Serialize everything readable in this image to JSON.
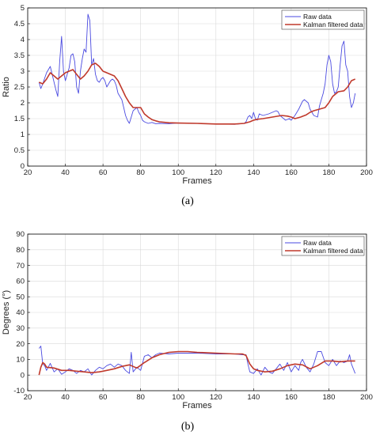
{
  "chart_data": [
    {
      "type": "line",
      "caption": "(a)",
      "xlabel": "Frames",
      "ylabel": "Ratio",
      "xlim": [
        20,
        200
      ],
      "ylim": [
        0,
        5
      ],
      "xticks": [
        20,
        40,
        60,
        80,
        100,
        120,
        140,
        160,
        180,
        200
      ],
      "yticks": [
        0,
        0.5,
        1,
        1.5,
        2,
        2.5,
        3,
        3.5,
        4,
        4.5,
        5
      ],
      "ytick_labels": [
        "0",
        "0.5",
        "1",
        "1.5",
        "2",
        "2.5",
        "3",
        "3.5",
        "4",
        "4.5",
        "5"
      ],
      "grid": true,
      "legend_position": "top-right",
      "series": [
        {
          "name": "Raw data",
          "color": "#4a4ae0",
          "x": [
            26,
            27,
            28,
            30,
            32,
            33,
            35,
            36,
            37,
            38,
            39,
            40,
            41,
            42,
            43,
            44,
            45,
            46,
            47,
            48,
            49,
            50,
            51,
            52,
            53,
            54,
            55,
            56,
            57,
            58,
            59,
            60,
            61,
            62,
            63,
            64,
            65,
            66,
            67,
            68,
            69,
            70,
            71,
            72,
            73,
            74,
            75,
            76,
            77,
            78,
            79,
            80,
            81,
            82,
            84,
            86,
            88,
            90,
            95,
            100,
            110,
            120,
            130,
            135,
            136,
            137,
            138,
            139,
            140,
            141,
            142,
            143,
            145,
            148,
            150,
            152,
            153,
            154,
            155,
            157,
            159,
            160,
            162,
            164,
            166,
            167,
            168,
            169,
            170,
            172,
            174,
            175,
            176,
            177,
            178,
            179,
            180,
            181,
            182,
            183,
            184,
            185,
            186,
            187,
            188,
            189,
            190,
            191,
            192,
            193,
            194
          ],
          "y": [
            2.65,
            2.45,
            2.6,
            2.95,
            3.15,
            2.9,
            2.4,
            2.2,
            3.3,
            4.1,
            3.0,
            2.7,
            2.9,
            3.1,
            3.5,
            3.55,
            3.3,
            2.5,
            2.3,
            3.0,
            3.4,
            3.7,
            3.6,
            4.8,
            4.6,
            3.2,
            3.4,
            2.9,
            2.7,
            2.65,
            2.75,
            2.8,
            2.7,
            2.5,
            2.6,
            2.7,
            2.75,
            2.7,
            2.55,
            2.3,
            2.2,
            2.1,
            1.85,
            1.6,
            1.45,
            1.35,
            1.55,
            1.75,
            1.8,
            1.85,
            1.7,
            1.6,
            1.45,
            1.4,
            1.35,
            1.38,
            1.34,
            1.35,
            1.34,
            1.36,
            1.35,
            1.33,
            1.32,
            1.35,
            1.4,
            1.55,
            1.6,
            1.5,
            1.7,
            1.5,
            1.45,
            1.65,
            1.6,
            1.65,
            1.7,
            1.75,
            1.72,
            1.6,
            1.55,
            1.45,
            1.5,
            1.45,
            1.6,
            1.8,
            2.05,
            2.1,
            2.05,
            2.0,
            1.8,
            1.6,
            1.55,
            1.9,
            2.1,
            2.3,
            2.6,
            3.2,
            3.5,
            3.3,
            2.6,
            2.3,
            2.35,
            2.5,
            3.2,
            3.8,
            3.95,
            3.2,
            3.0,
            2.2,
            1.85,
            2.0,
            2.3
          ]
        },
        {
          "name": "Kalman filtered data",
          "color": "#c0392b",
          "x": [
            26,
            28,
            30,
            32,
            34,
            36,
            38,
            40,
            42,
            44,
            46,
            48,
            50,
            52,
            54,
            56,
            58,
            60,
            62,
            64,
            66,
            68,
            70,
            72,
            74,
            76,
            78,
            80,
            82,
            84,
            86,
            88,
            90,
            95,
            100,
            110,
            120,
            130,
            135,
            138,
            140,
            142,
            145,
            150,
            155,
            158,
            160,
            162,
            165,
            168,
            170,
            172,
            175,
            178,
            180,
            182,
            185,
            188,
            190,
            192,
            194
          ],
          "y": [
            2.65,
            2.6,
            2.75,
            2.95,
            2.85,
            2.75,
            2.85,
            2.95,
            3.0,
            3.05,
            2.9,
            2.75,
            2.85,
            3.0,
            3.2,
            3.25,
            3.15,
            3.0,
            2.95,
            2.9,
            2.85,
            2.7,
            2.45,
            2.2,
            2.0,
            1.85,
            1.85,
            1.85,
            1.65,
            1.55,
            1.47,
            1.43,
            1.4,
            1.37,
            1.36,
            1.35,
            1.33,
            1.33,
            1.35,
            1.4,
            1.45,
            1.48,
            1.5,
            1.55,
            1.6,
            1.58,
            1.55,
            1.5,
            1.55,
            1.62,
            1.7,
            1.75,
            1.8,
            1.85,
            2.0,
            2.2,
            2.35,
            2.38,
            2.5,
            2.7,
            2.75
          ]
        }
      ]
    },
    {
      "type": "line",
      "caption": "(b)",
      "xlabel": "Frames",
      "ylabel": "Degrees (°)",
      "xlim": [
        20,
        200
      ],
      "ylim": [
        -10,
        90
      ],
      "xticks": [
        20,
        40,
        60,
        80,
        100,
        120,
        140,
        160,
        180,
        200
      ],
      "yticks": [
        -10,
        0,
        10,
        20,
        30,
        40,
        50,
        60,
        70,
        80,
        90
      ],
      "ytick_labels": [
        "-10",
        "0",
        "10",
        "20",
        "30",
        "40",
        "50",
        "60",
        "70",
        "80",
        "90"
      ],
      "grid": true,
      "legend_position": "top-right",
      "series": [
        {
          "name": "Raw data",
          "color": "#4a4ae0",
          "x": [
            26,
            27,
            28,
            29,
            30,
            32,
            34,
            36,
            38,
            40,
            42,
            44,
            46,
            48,
            50,
            52,
            54,
            56,
            58,
            60,
            62,
            64,
            66,
            68,
            70,
            72,
            74,
            75,
            76,
            78,
            80,
            82,
            84,
            86,
            88,
            90,
            95,
            100,
            110,
            120,
            130,
            134,
            136,
            137,
            138,
            140,
            142,
            144,
            146,
            148,
            150,
            152,
            154,
            156,
            158,
            160,
            162,
            164,
            165,
            166,
            168,
            170,
            172,
            174,
            176,
            178,
            180,
            182,
            184,
            186,
            188,
            190,
            191,
            192,
            194
          ],
          "y": [
            17,
            18.5,
            7,
            6,
            3,
            7.5,
            2,
            4,
            0.5,
            2,
            4,
            3,
            1,
            3,
            2,
            4,
            0,
            3,
            5,
            4,
            6,
            7,
            5,
            7,
            6,
            3,
            1,
            14.5,
            2,
            5,
            3,
            12,
            13,
            11,
            13,
            14,
            13.5,
            14,
            14,
            13.5,
            13.5,
            13,
            13,
            7,
            2,
            1,
            4,
            0,
            5,
            2,
            1,
            4,
            7,
            3,
            8,
            2,
            6,
            3,
            8,
            10,
            5,
            2,
            7,
            15,
            15,
            8,
            6,
            10,
            6,
            9,
            8,
            9,
            13,
            7,
            1
          ]
        },
        {
          "name": "Kalman filtered data",
          "color": "#c0392b",
          "x": [
            26,
            27,
            28,
            29,
            30,
            34,
            38,
            42,
            46,
            50,
            54,
            58,
            62,
            66,
            70,
            74,
            78,
            82,
            86,
            90,
            95,
            100,
            105,
            110,
            120,
            130,
            134,
            136,
            138,
            140,
            142,
            146,
            150,
            154,
            158,
            162,
            166,
            170,
            174,
            178,
            182,
            186,
            190,
            194
          ],
          "y": [
            0,
            5,
            8,
            7,
            5,
            4.5,
            3,
            3,
            2.5,
            2,
            1.5,
            2,
            3,
            4,
            5.5,
            6.5,
            4.5,
            8,
            11,
            13,
            14.5,
            15,
            15,
            14.5,
            14,
            13.5,
            13.5,
            12.5,
            7,
            4,
            3,
            2,
            2.5,
            4,
            6,
            7,
            6.5,
            4,
            6,
            9,
            9,
            8.5,
            9,
            9
          ]
        }
      ]
    }
  ]
}
